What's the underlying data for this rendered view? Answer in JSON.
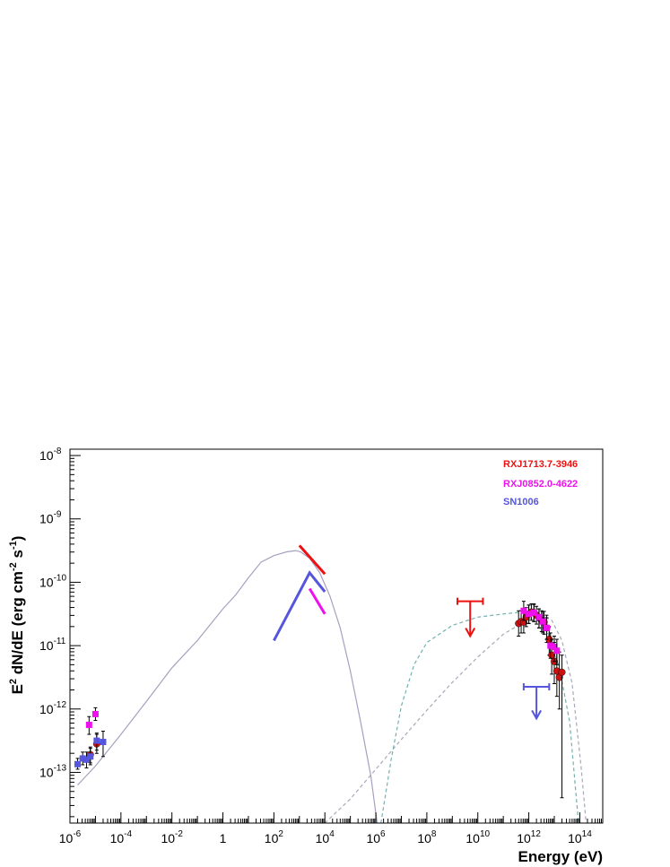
{
  "chart_data": {
    "type": "scatter",
    "xlabel": "Energy (eV)",
    "ylabel_parts": [
      "E",
      "2",
      " dN/dE (erg cm",
      "-2",
      " s",
      "-1",
      ")"
    ],
    "xscale": "log",
    "yscale": "log",
    "xlim_log10": [
      -6,
      14.9
    ],
    "ylim_log10": [
      -13.8,
      -7.9
    ],
    "x_ticks": [
      {
        "exp": -6,
        "base": "10",
        "sup": "-6"
      },
      {
        "exp": -4,
        "base": "10",
        "sup": "-4"
      },
      {
        "exp": -2,
        "base": "10",
        "sup": "-2"
      },
      {
        "exp": 0,
        "base": "1",
        "sup": ""
      },
      {
        "exp": 2,
        "base": "10",
        "sup": "2"
      },
      {
        "exp": 4,
        "base": "10",
        "sup": "4"
      },
      {
        "exp": 6,
        "base": "10",
        "sup": "6"
      },
      {
        "exp": 8,
        "base": "10",
        "sup": "8"
      },
      {
        "exp": 10,
        "base": "10",
        "sup": "10"
      },
      {
        "exp": 12,
        "base": "10",
        "sup": "12"
      },
      {
        "exp": 14,
        "base": "10",
        "sup": "14"
      }
    ],
    "y_ticks": [
      {
        "exp": -8,
        "base": "10",
        "sup": "-8"
      },
      {
        "exp": -9,
        "base": "10",
        "sup": "-9"
      },
      {
        "exp": -10,
        "base": "10",
        "sup": "-10"
      },
      {
        "exp": -11,
        "base": "10",
        "sup": "-11"
      },
      {
        "exp": -12,
        "base": "10",
        "sup": "-12"
      },
      {
        "exp": -13,
        "base": "10",
        "sup": "-13"
      }
    ],
    "grid": false,
    "legend_position": "top-right",
    "legend": [
      {
        "label": "RXJ1713.7-3946",
        "color": "#ee1111"
      },
      {
        "label": "RXJ0852.0-4622",
        "color": "#ee11ee"
      },
      {
        "label": "SN1006",
        "color": "#5555dd"
      }
    ],
    "models": [
      {
        "style": "solid",
        "color": "#a6a0c0",
        "points": [
          [
            -5.7,
            -13.2
          ],
          [
            -5,
            -12.9
          ],
          [
            -4,
            -12.4
          ],
          [
            -3,
            -11.88
          ],
          [
            -2,
            -11.35
          ],
          [
            -1,
            -10.92
          ],
          [
            0,
            -10.42
          ],
          [
            0.5,
            -10.2
          ],
          [
            1,
            -9.93
          ],
          [
            1.5,
            -9.68
          ],
          [
            2,
            -9.58
          ],
          [
            2.5,
            -9.52
          ],
          [
            2.85,
            -9.5
          ],
          [
            3.05,
            -9.52
          ],
          [
            3.4,
            -9.62
          ],
          [
            3.8,
            -9.85
          ],
          [
            4.2,
            -10.22
          ],
          [
            4.6,
            -10.72
          ],
          [
            5,
            -11.4
          ],
          [
            5.4,
            -12.2
          ],
          [
            5.8,
            -13.05
          ],
          [
            6.05,
            -13.8
          ]
        ]
      },
      {
        "style": "dashed",
        "color": "#a8a8bc",
        "points": [
          [
            4,
            -13.8
          ],
          [
            5,
            -13.42
          ],
          [
            6,
            -12.95
          ],
          [
            7,
            -12.48
          ],
          [
            8,
            -12.02
          ],
          [
            9,
            -11.58
          ],
          [
            10,
            -11.18
          ],
          [
            11,
            -10.82
          ],
          [
            12,
            -10.58
          ],
          [
            12.5,
            -10.52
          ],
          [
            12.9,
            -10.6
          ],
          [
            13.3,
            -10.92
          ],
          [
            13.7,
            -11.6
          ],
          [
            14.05,
            -12.9
          ],
          [
            14.25,
            -13.8
          ]
        ]
      },
      {
        "style": "dashed",
        "color": "#74b0b0",
        "points": [
          [
            6.2,
            -13.8
          ],
          [
            6.6,
            -12.8
          ],
          [
            7,
            -11.95
          ],
          [
            7.5,
            -11.3
          ],
          [
            8,
            -10.95
          ],
          [
            9,
            -10.68
          ],
          [
            10,
            -10.55
          ],
          [
            11,
            -10.5
          ],
          [
            11.5,
            -10.48
          ],
          [
            12,
            -10.45
          ],
          [
            12.4,
            -10.55
          ],
          [
            12.8,
            -10.85
          ],
          [
            13.2,
            -11.35
          ],
          [
            13.6,
            -12.2
          ],
          [
            13.95,
            -13.8
          ]
        ]
      }
    ],
    "spectral_segments": [
      {
        "source": "RXJ1713.7-3946",
        "color": "#ee1111",
        "points": [
          [
            3,
            -9.42
          ],
          [
            4,
            -9.87
          ]
        ]
      },
      {
        "source": "SN1006",
        "color": "#5555dd",
        "points": [
          [
            2,
            -10.92
          ],
          [
            3.4,
            -9.85
          ],
          [
            4,
            -10.15
          ]
        ]
      },
      {
        "source": "RXJ0852.0-4622",
        "color": "#ee11ee",
        "points": [
          [
            3.4,
            -10.1
          ],
          [
            4,
            -10.5
          ]
        ]
      }
    ],
    "upper_limits": [
      {
        "source": "RXJ1713.7-3946",
        "color": "#ee1111",
        "x_log10": 9.7,
        "xerr_log10": [
          9.2,
          10.2
        ],
        "y_log10": -10.3,
        "arrow_to_log10": -10.85
      },
      {
        "source": "SN1006",
        "color": "#5555dd",
        "x_log10": 12.3,
        "xerr_log10": [
          11.8,
          12.8
        ],
        "y_log10": -11.65,
        "arrow_to_log10": -12.15
      }
    ],
    "series": [
      {
        "name": "RXJ1713.7-3946",
        "color": "#cc1111",
        "marker": "circle",
        "points": [
          {
            "x": -5.2,
            "y": -12.72,
            "lo": -12.85,
            "hi": -12.6
          },
          {
            "x": -4.95,
            "y": -12.55,
            "lo": -12.7,
            "hi": -12.4
          },
          {
            "x": 11.6,
            "y": -10.65,
            "lo": -10.85,
            "hi": -10.45
          },
          {
            "x": 11.7,
            "y": -10.62,
            "lo": -10.8,
            "hi": -10.45
          },
          {
            "x": 11.8,
            "y": -10.63,
            "lo": -10.8,
            "hi": -10.46
          },
          {
            "x": 11.9,
            "y": -10.55,
            "lo": -10.7,
            "hi": -10.4
          },
          {
            "x": 12.0,
            "y": -10.5,
            "lo": -10.65,
            "hi": -10.36
          },
          {
            "x": 12.1,
            "y": -10.47,
            "lo": -10.6,
            "hi": -10.34
          },
          {
            "x": 12.2,
            "y": -10.48,
            "lo": -10.62,
            "hi": -10.35
          },
          {
            "x": 12.3,
            "y": -10.52,
            "lo": -10.66,
            "hi": -10.38
          },
          {
            "x": 12.4,
            "y": -10.56,
            "lo": -10.72,
            "hi": -10.42
          },
          {
            "x": 12.5,
            "y": -10.6,
            "lo": -10.78,
            "hi": -10.45
          },
          {
            "x": 12.6,
            "y": -10.63,
            "lo": -10.82,
            "hi": -10.46
          },
          {
            "x": 12.7,
            "y": -10.72,
            "lo": -10.95,
            "hi": -10.52
          },
          {
            "x": 12.8,
            "y": -10.9,
            "lo": -11.15,
            "hi": -10.7
          },
          {
            "x": 12.9,
            "y": -11.15,
            "lo": -11.45,
            "hi": -10.9
          },
          {
            "x": 13.0,
            "y": -11.25,
            "lo": -11.6,
            "hi": -10.95
          },
          {
            "x": 13.1,
            "y": -11.4,
            "lo": -11.8,
            "hi": -11.05
          },
          {
            "x": 13.2,
            "y": -11.5,
            "lo": -12.0,
            "hi": -11.1
          },
          {
            "x": 13.3,
            "y": -11.42,
            "lo": -13.4,
            "hi": -11.15
          }
        ]
      },
      {
        "name": "RXJ0852.0-4622",
        "color": "#ee11ee",
        "marker": "square",
        "points": [
          {
            "x": -5.25,
            "y": -12.25,
            "lo": -12.4,
            "hi": -12.12
          },
          {
            "x": -5.0,
            "y": -12.08,
            "lo": -12.18,
            "hi": -11.98
          },
          {
            "x": 11.8,
            "y": -10.45,
            "lo": -10.6,
            "hi": -10.3
          },
          {
            "x": 12.0,
            "y": -10.5,
            "lo": -10.65,
            "hi": -10.36
          },
          {
            "x": 12.2,
            "y": -10.48,
            "lo": -10.62,
            "hi": -10.34
          },
          {
            "x": 12.4,
            "y": -10.55,
            "lo": -10.72,
            "hi": -10.42
          },
          {
            "x": 12.55,
            "y": -10.62,
            "lo": -10.8,
            "hi": -10.46
          },
          {
            "x": 12.7,
            "y": -10.72,
            "lo": -10.9,
            "hi": -10.56
          },
          {
            "x": 12.85,
            "y": -11.0,
            "lo": -11.2,
            "hi": -10.8
          },
          {
            "x": 13.0,
            "y": -11.02,
            "lo": -11.25,
            "hi": -10.85
          },
          {
            "x": 13.1,
            "y": -11.08,
            "lo": -11.3,
            "hi": -10.9
          }
        ]
      },
      {
        "name": "SN1006",
        "color": "#5555dd",
        "marker": "square",
        "points": [
          {
            "x": -5.7,
            "y": -12.87,
            "lo": -12.95,
            "hi": -12.78
          },
          {
            "x": -5.5,
            "y": -12.78,
            "lo": -12.88,
            "hi": -12.68
          },
          {
            "x": -5.35,
            "y": -12.8,
            "lo": -12.93,
            "hi": -12.68
          },
          {
            "x": -5.2,
            "y": -12.75,
            "lo": -12.88,
            "hi": -12.62
          },
          {
            "x": -4.95,
            "y": -12.5,
            "lo": -12.65,
            "hi": -12.38
          },
          {
            "x": -4.7,
            "y": -12.52,
            "lo": -12.75,
            "hi": -12.35
          }
        ]
      }
    ]
  }
}
